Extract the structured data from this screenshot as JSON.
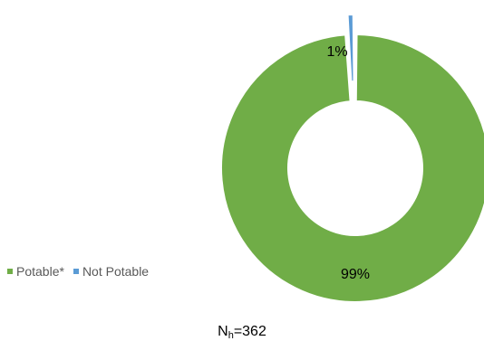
{
  "chart_data": {
    "type": "pie",
    "variant": "donut",
    "categories": [
      "Potable*",
      "Not Potable"
    ],
    "values": [
      99,
      1
    ],
    "data_labels": [
      "99%",
      "1%"
    ],
    "colors": [
      "#70ad47",
      "#5b9bd5"
    ],
    "exploded": [
      "Not Potable"
    ],
    "legend_placement": "left",
    "title": "",
    "subtitle": ""
  },
  "footnote": {
    "main": "N",
    "sub": "h",
    "value": "=362"
  }
}
